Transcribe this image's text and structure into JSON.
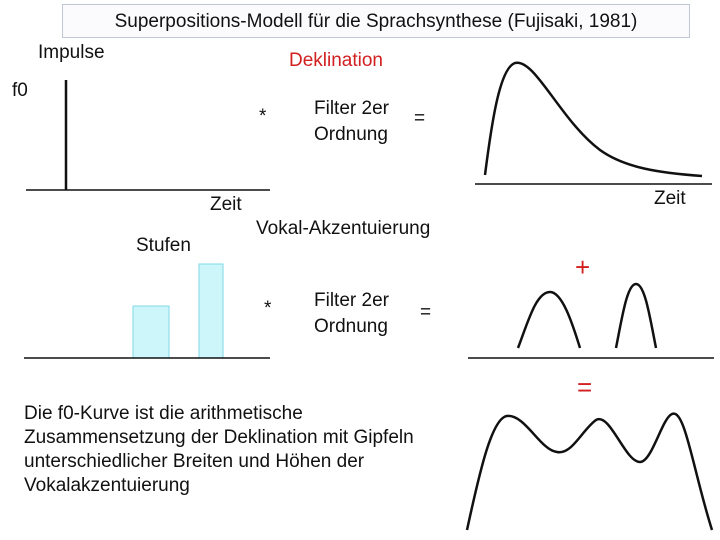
{
  "title": "Superpositions-Modell für die Sprachsynthese (Fujisaki, 1981)",
  "labels": {
    "impulse": "Impulse",
    "f0": "f0",
    "deklination": "Deklination",
    "star1": "*",
    "filter1_line1": "Filter 2er",
    "filter1_line2": "Ordnung",
    "equals1": "=",
    "zeit_left": "Zeit",
    "zeit_right": "Zeit",
    "vokal_akzent": "Vokal-Akzentuierung",
    "stufen": "Stufen",
    "star2": "*",
    "filter2_line1": "Filter 2er",
    "filter2_line2": "Ordnung",
    "equals2": "=",
    "plus": "+",
    "equals_red": "="
  },
  "description": "Die f0-Kurve ist die arithmetische Zusammensetzung der Deklination mit Gipfeln unterschiedlicher Breiten und Höhen der Vokalakzentuierung",
  "colors": {
    "accent_red": "#d21f1f",
    "step_fill": "#ccf6fa",
    "step_stroke": "#7fd8e6"
  }
}
